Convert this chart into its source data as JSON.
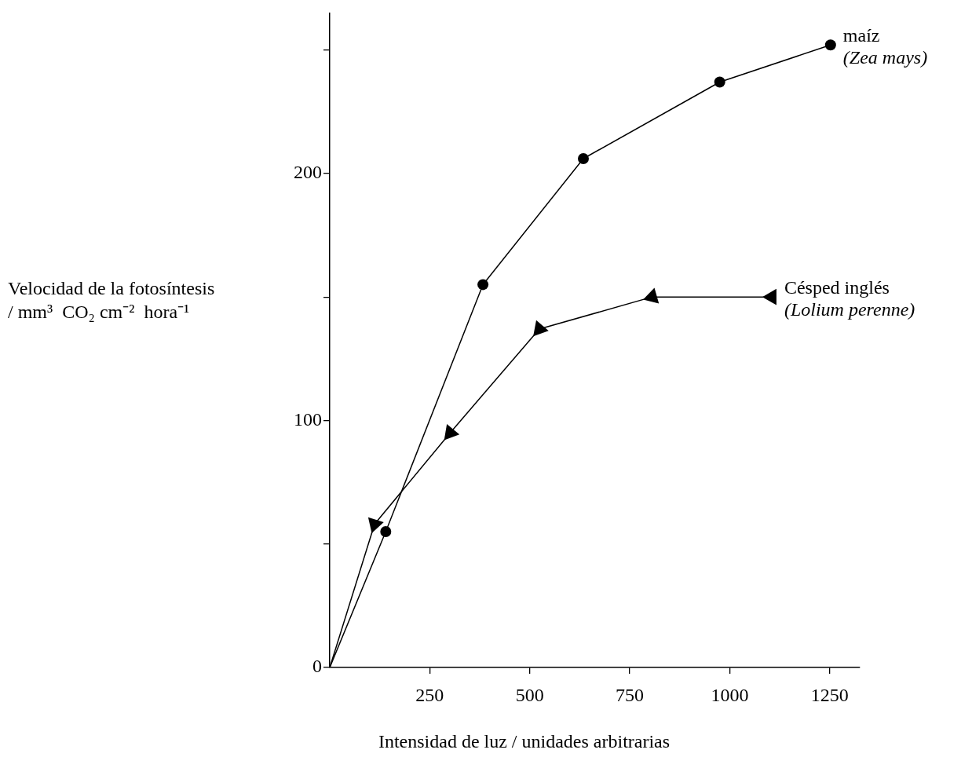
{
  "chart_data": {
    "type": "line",
    "xlabel": "Intensidad de luz / unidades arbitrarias",
    "ylabel": "Velocidad de la fotosíntesis\n/ mm³  CO₂ cm⁻²  hora⁻¹",
    "xlim": [
      0,
      1325
    ],
    "xticks": [
      250,
      500,
      750,
      1000,
      1250
    ],
    "ylim": [
      0,
      265
    ],
    "yticks": [
      0,
      {
        "value": 50,
        "label": null
      },
      100,
      {
        "value": 150,
        "label": null
      },
      200,
      {
        "value": 250,
        "label": null
      }
    ],
    "grid": false,
    "legend": false,
    "series": [
      {
        "name": "maíz",
        "color": "#000000",
        "marker": "circle",
        "x": [
          0,
          140,
          383,
          634,
          975,
          1252
        ],
        "values": [
          0,
          55,
          155,
          206,
          237,
          252
        ]
      },
      {
        "name": "Césped inglés",
        "color": "#000000",
        "marker": "triangle",
        "x": [
          0,
          112,
          301,
          524,
          806,
          1105
        ],
        "values": [
          0,
          58,
          95,
          137,
          150,
          150
        ]
      }
    ],
    "annotations": [
      {
        "text": "(Zea mays)",
        "x": 1252,
        "y": 252
      },
      {
        "text": "(Lolium perenne)",
        "x": 1105,
        "y": 150
      }
    ]
  }
}
